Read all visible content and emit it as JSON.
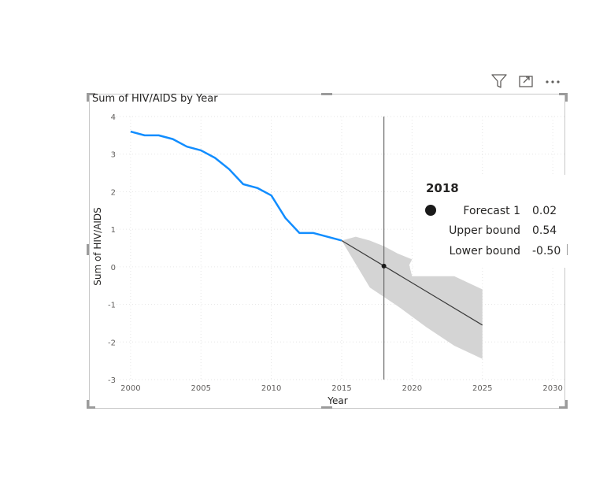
{
  "toolbar": {
    "icons": [
      "filter-icon",
      "focus-mode-icon",
      "more-options-icon"
    ]
  },
  "visual": {
    "title": "Sum of HIV/AIDS by Year"
  },
  "chart_data": {
    "type": "line",
    "title": "Sum of HIV/AIDS by Year",
    "xlabel": "Year",
    "ylabel": "Sum of HIV/AIDS",
    "xlim": [
      1999,
      2031
    ],
    "ylim": [
      -3,
      4
    ],
    "x_ticks": [
      2000,
      2005,
      2010,
      2015,
      2020,
      2025,
      2030
    ],
    "y_ticks": [
      4,
      3,
      2,
      1,
      0,
      -1,
      -2,
      -3
    ],
    "grid": true,
    "series": [
      {
        "name": "",
        "color": "#118DFF",
        "x": [
          2000,
          2001,
          2002,
          2003,
          2004,
          2005,
          2006,
          2007,
          2008,
          2009,
          2010,
          2011,
          2012,
          2013,
          2014,
          2015
        ],
        "y": [
          3.6,
          3.5,
          3.5,
          3.4,
          3.2,
          3.1,
          2.9,
          2.6,
          2.2,
          2.1,
          1.9,
          1.3,
          0.9,
          0.9,
          0.8,
          0.7
        ]
      }
    ],
    "forecast": {
      "name": "Forecast 1",
      "line_color": "#3a3a3a",
      "band_color": "#d4d4d4",
      "x": [
        2015,
        2025
      ],
      "y": [
        0.7,
        -1.55
      ],
      "band_upper": [
        [
          2015,
          0.7
        ],
        [
          2016,
          0.8
        ],
        [
          2017,
          0.7
        ],
        [
          2018,
          0.55
        ],
        [
          2019,
          0.35
        ],
        [
          2020,
          0.2
        ],
        [
          2019.8,
          0.05
        ],
        [
          2020,
          -0.25
        ],
        [
          2023,
          -0.25
        ],
        [
          2025,
          -0.6
        ]
      ],
      "band_lower": [
        [
          2025,
          -2.45
        ],
        [
          2023,
          -2.1
        ],
        [
          2021,
          -1.6
        ],
        [
          2019,
          -1.05
        ],
        [
          2017,
          -0.55
        ],
        [
          2015,
          0.7
        ]
      ]
    },
    "cursor": {
      "x": 2018,
      "y": 0.02
    },
    "tooltip": {
      "title": "2018",
      "rows": [
        {
          "label": "Forecast 1",
          "value": "0.02"
        },
        {
          "label": "Upper bound",
          "value": "0.54"
        },
        {
          "label": "Lower bound",
          "value": "-0.50"
        }
      ]
    }
  }
}
